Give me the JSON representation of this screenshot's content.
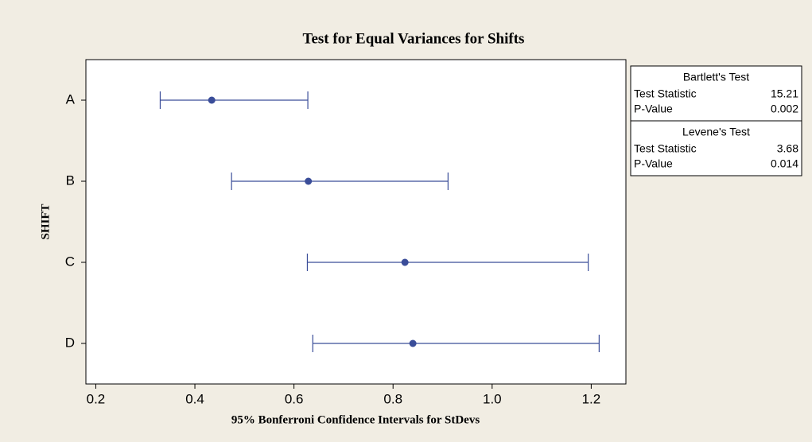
{
  "chart_data": {
    "type": "interval",
    "title": "Test for Equal Variances for Shifts",
    "xlabel": "95% Bonferroni Confidence Intervals for StDevs",
    "ylabel": "SHIFT",
    "categories": [
      "A",
      "B",
      "C",
      "D"
    ],
    "values": [
      0.434,
      0.629,
      0.824,
      0.84
    ],
    "lower": [
      0.33,
      0.474,
      0.627,
      0.638
    ],
    "upper": [
      0.628,
      0.911,
      1.194,
      1.216
    ],
    "color": "#3a4d99",
    "xlim": [
      0.18,
      1.27
    ],
    "xticks": [
      0.2,
      0.4,
      0.6,
      0.8,
      {
        "value": 1.0,
        "label": "1.0"
      },
      1.2
    ],
    "tests": [
      {
        "title": "Bartlett's Test",
        "rows": [
          {
            "label": "Test Statistic",
            "value": 15.21
          },
          {
            "label": "P-Value",
            "value": 0.002
          }
        ]
      },
      {
        "title": "Levene's Test",
        "rows": [
          {
            "label": "Test Statistic",
            "value": 3.68
          },
          {
            "label": "P-Value",
            "value": 0.014
          }
        ]
      }
    ]
  }
}
